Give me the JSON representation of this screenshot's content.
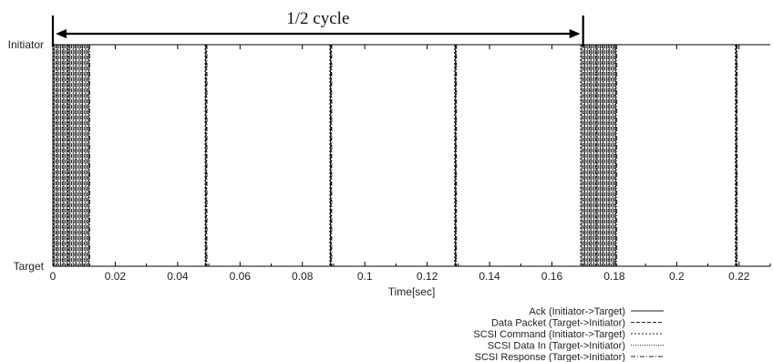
{
  "chart_data": {
    "type": "line",
    "xlabel": "Time[sec]",
    "xlim": [
      0,
      0.23
    ],
    "x_ticks": [
      "0",
      "0.02",
      "0.04",
      "0.06",
      "0.08",
      "0.1",
      "0.12",
      "0.14",
      "0.16",
      "0.18",
      "0.2",
      "0.22"
    ],
    "x_tick_values": [
      0,
      0.02,
      0.04,
      0.06,
      0.08,
      0.1,
      0.12,
      0.14,
      0.16,
      0.18,
      0.2,
      0.22
    ],
    "y_categories": [
      "Target",
      "Initiator"
    ],
    "annotation": {
      "label": "1/2 cycle",
      "from_x": 0,
      "to_x": 0.17
    },
    "legend_position": "bottom-right",
    "series": [
      {
        "name": "Ack (Initiator->Target)",
        "style": "solid",
        "transitions": [
          0.0005,
          0.0015,
          0.0025,
          0.0035,
          0.0045,
          0.0055,
          0.0065,
          0.0075,
          0.0085,
          0.0095,
          0.0105,
          0.0115,
          0.049,
          0.089,
          0.129,
          0.1695,
          0.1705,
          0.1715,
          0.1725,
          0.1735,
          0.1745,
          0.1755,
          0.1765,
          0.1775,
          0.1785,
          0.1795,
          0.1805,
          0.219
        ]
      },
      {
        "name": "Data Packet (Target->Initiator)",
        "style": "dashed",
        "transitions": [
          0.001,
          0.002,
          0.003,
          0.004,
          0.005,
          0.006,
          0.007,
          0.008,
          0.009,
          0.01,
          0.011,
          0.0492,
          0.0892,
          0.1292,
          0.17,
          0.171,
          0.172,
          0.173,
          0.174,
          0.175,
          0.176,
          0.177,
          0.178,
          0.179,
          0.18,
          0.2192
        ]
      },
      {
        "name": "SCSI Command (Initiator->Target)",
        "style": "dotted",
        "transitions": [
          0.0002,
          0.0048,
          0.0488,
          0.0888,
          0.1288,
          0.1692,
          0.1742,
          0.2188
        ]
      },
      {
        "name": "SCSI Data In (Target->Initiator)",
        "style": "fine-dotted",
        "transitions": [
          0.0012,
          0.0032,
          0.0052,
          0.0072,
          0.0092,
          0.0112,
          0.1702,
          0.1722,
          0.1742,
          0.1762,
          0.1782,
          0.1802
        ]
      },
      {
        "name": "SCSI Response (Target->Initiator)",
        "style": "dash-dot",
        "transitions": [
          0.0118,
          0.0494,
          0.0894,
          0.1294,
          0.1808,
          0.2194
        ]
      }
    ]
  }
}
